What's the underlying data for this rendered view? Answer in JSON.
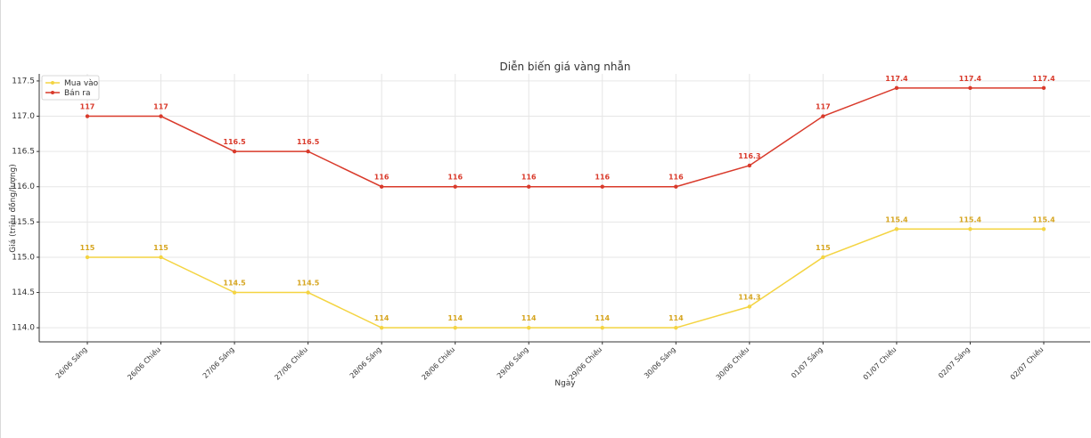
{
  "chart_data": {
    "type": "line",
    "title": "Diễn biến giá vàng nhẫn",
    "xlabel": "Ngày",
    "ylabel": "Giá (triệu đồng/lượng)",
    "ylim": [
      113.8,
      117.6
    ],
    "yticks": [
      "114.0",
      "114.5",
      "115.0",
      "115.5",
      "116.0",
      "116.5",
      "117.0",
      "117.5"
    ],
    "grid": true,
    "legend_position": "top-left",
    "categories": [
      "26/06 Sáng",
      "26/06 Chiều",
      "27/06 Sáng",
      "27/06 Chiều",
      "28/06 Sáng",
      "28/06 Chiều",
      "29/06 Sáng",
      "29/06 Chiều",
      "30/06 Sáng",
      "30/06 Chiều",
      "01/07 Sáng",
      "01/07 Chiều",
      "02/07 Sáng",
      "02/07 Chiều"
    ],
    "series": [
      {
        "name": "Mua vào",
        "color": "#f4d442",
        "label_color": "#d6a520",
        "values": [
          115,
          115,
          114.5,
          114.5,
          114,
          114,
          114,
          114,
          114,
          114.3,
          115,
          115.4,
          115.4,
          115.4
        ],
        "labels": [
          "115",
          "115",
          "114.5",
          "114.5",
          "114",
          "114",
          "114",
          "114",
          "114",
          "114.3",
          "115",
          "115.4",
          "115.4",
          "115.4"
        ]
      },
      {
        "name": "Bán ra",
        "color": "#d93a2b",
        "label_color": "#d93a2b",
        "values": [
          117,
          117,
          116.5,
          116.5,
          116,
          116,
          116,
          116,
          116,
          116.3,
          117,
          117.4,
          117.4,
          117.4
        ],
        "labels": [
          "117",
          "117",
          "116.5",
          "116.5",
          "116",
          "116",
          "116",
          "116",
          "116",
          "116.3",
          "117",
          "117.4",
          "117.4",
          "117.4"
        ]
      }
    ]
  }
}
